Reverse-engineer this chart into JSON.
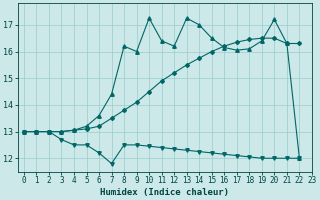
{
  "xlabel": "Humidex (Indice chaleur)",
  "ylabel": "",
  "bg_color": "#cce8e8",
  "line_color": "#006666",
  "xlim": [
    -0.5,
    23
  ],
  "ylim": [
    11.5,
    17.8
  ],
  "yticks": [
    12,
    13,
    14,
    15,
    16,
    17
  ],
  "xticks": [
    0,
    1,
    2,
    3,
    4,
    5,
    6,
    7,
    8,
    9,
    10,
    11,
    12,
    13,
    14,
    15,
    16,
    17,
    18,
    19,
    20,
    21,
    22,
    23
  ],
  "line1_x": [
    0,
    1,
    2,
    3,
    4,
    5,
    6,
    7,
    8,
    9,
    10,
    11,
    12,
    13,
    14,
    15,
    16,
    17,
    18,
    19,
    20,
    21,
    22
  ],
  "line1_y": [
    13.0,
    13.0,
    13.0,
    12.7,
    12.5,
    12.5,
    12.2,
    11.8,
    12.5,
    12.5,
    12.45,
    12.4,
    12.35,
    12.3,
    12.25,
    12.2,
    12.15,
    12.1,
    12.05,
    12.0,
    12.0,
    12.0,
    12.0
  ],
  "line2_x": [
    0,
    1,
    2,
    3,
    4,
    5,
    6,
    7,
    8,
    9,
    10,
    11,
    12,
    13,
    14,
    15,
    16,
    17,
    18,
    19,
    20,
    21,
    22
  ],
  "line2_y": [
    13.0,
    13.0,
    13.0,
    13.0,
    13.05,
    13.1,
    13.2,
    13.5,
    13.8,
    14.1,
    14.5,
    14.9,
    15.2,
    15.5,
    15.75,
    16.0,
    16.2,
    16.35,
    16.45,
    16.5,
    16.5,
    16.3,
    16.3
  ],
  "line3_x": [
    0,
    1,
    2,
    3,
    4,
    5,
    6,
    7,
    8,
    9,
    10,
    11,
    12,
    13,
    14,
    15,
    16,
    17,
    18,
    19,
    20,
    21,
    22
  ],
  "line3_y": [
    13.0,
    13.0,
    13.0,
    13.0,
    13.05,
    13.2,
    13.6,
    14.4,
    16.2,
    16.0,
    17.25,
    16.4,
    16.2,
    17.25,
    17.0,
    16.5,
    16.15,
    16.05,
    16.1,
    16.4,
    17.2,
    16.3,
    12.0
  ],
  "grid_color": "#99cccc",
  "font_color": "#004444",
  "tick_fontsize": 5.5,
  "xlabel_fontsize": 6.5
}
